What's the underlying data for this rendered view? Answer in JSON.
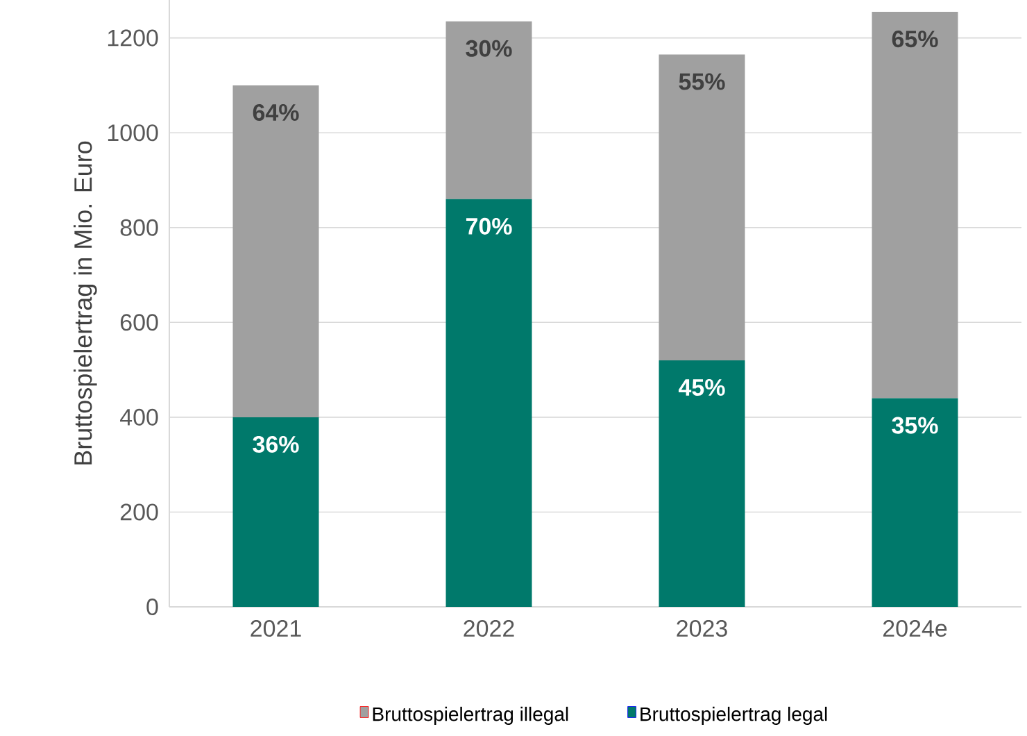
{
  "chart_data": {
    "type": "bar",
    "stacked": true,
    "ylabel": "Bruttospielertrag in Mio. Euro",
    "categories": [
      "2021",
      "2022",
      "2023",
      "2024e"
    ],
    "series": [
      {
        "name": "Bruttospielertrag legal",
        "color": "#00796b",
        "values": [
          400,
          860,
          520,
          440
        ]
      },
      {
        "name": "Bruttospielertrag illegal",
        "color": "#a0a0a0",
        "values": [
          700,
          375,
          645,
          815
        ]
      }
    ],
    "annotations": [
      {
        "text": "36%",
        "x": "2021",
        "y": 400
      },
      {
        "text": "70%",
        "x": "2022",
        "y": 860
      },
      {
        "text": "45%",
        "x": "2023",
        "y": 520
      },
      {
        "text": "35%",
        "x": "2024e",
        "y": 440
      },
      {
        "text": "64%",
        "x": "2021",
        "y": 1100
      },
      {
        "text": "30%",
        "x": "2022",
        "y": 1235
      },
      {
        "text": "55%",
        "x": "2023",
        "y": 1165
      },
      {
        "text": "65%",
        "x": "2024e",
        "y": 1255
      }
    ],
    "ylim": [
      0,
      1280
    ],
    "yticks": [
      0,
      200,
      400,
      600,
      800,
      1000,
      1200
    ],
    "grid": "y",
    "legend": "bottom"
  }
}
